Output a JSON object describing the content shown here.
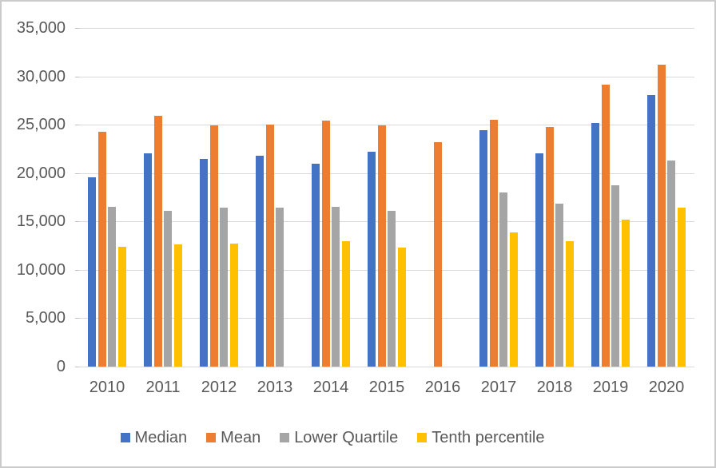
{
  "chart_data": {
    "type": "bar",
    "title": "",
    "xlabel": "",
    "ylabel": "",
    "categories": [
      "2010",
      "2011",
      "2012",
      "2013",
      "2014",
      "2015",
      "2016",
      "2017",
      "2018",
      "2019",
      "2020"
    ],
    "series": [
      {
        "name": "Median",
        "color": "#4472C4",
        "values": [
          19600,
          22000,
          21500,
          21800,
          21000,
          22200,
          null,
          24400,
          22000,
          25200,
          28100
        ]
      },
      {
        "name": "Mean",
        "color": "#ED7D31",
        "values": [
          24300,
          25900,
          24900,
          25000,
          25400,
          24900,
          23200,
          25500,
          24800,
          29100,
          31200
        ]
      },
      {
        "name": "Lower Quartile",
        "color": "#A5A5A5",
        "values": [
          16500,
          16100,
          16400,
          16400,
          16500,
          16100,
          null,
          18000,
          16800,
          18700,
          21300
        ]
      },
      {
        "name": "Tenth percentile",
        "color": "#FFC000",
        "values": [
          12400,
          12600,
          12700,
          null,
          13000,
          12300,
          null,
          13900,
          13000,
          15200,
          16400
        ]
      }
    ],
    "ylim": [
      0,
      35000
    ],
    "ytick_step": 5000,
    "ytick_values": [
      0,
      5000,
      10000,
      15000,
      20000,
      25000,
      30000,
      35000
    ],
    "ytick_labels": [
      "0",
      "5,000",
      "10,000",
      "15,000",
      "20,000",
      "25,000",
      "30,000",
      "35,000"
    ],
    "grid": true,
    "legend_position": "bottom",
    "notes": "No Tenth percentile bar in 2013; only Mean bar in 2016."
  },
  "style": {
    "axis_text_color": "#595959",
    "gridline_color": "#d9d9d9",
    "tick_color": "#bfbfbf",
    "background": "#ffffff",
    "border_color": "#cbcbcb"
  }
}
